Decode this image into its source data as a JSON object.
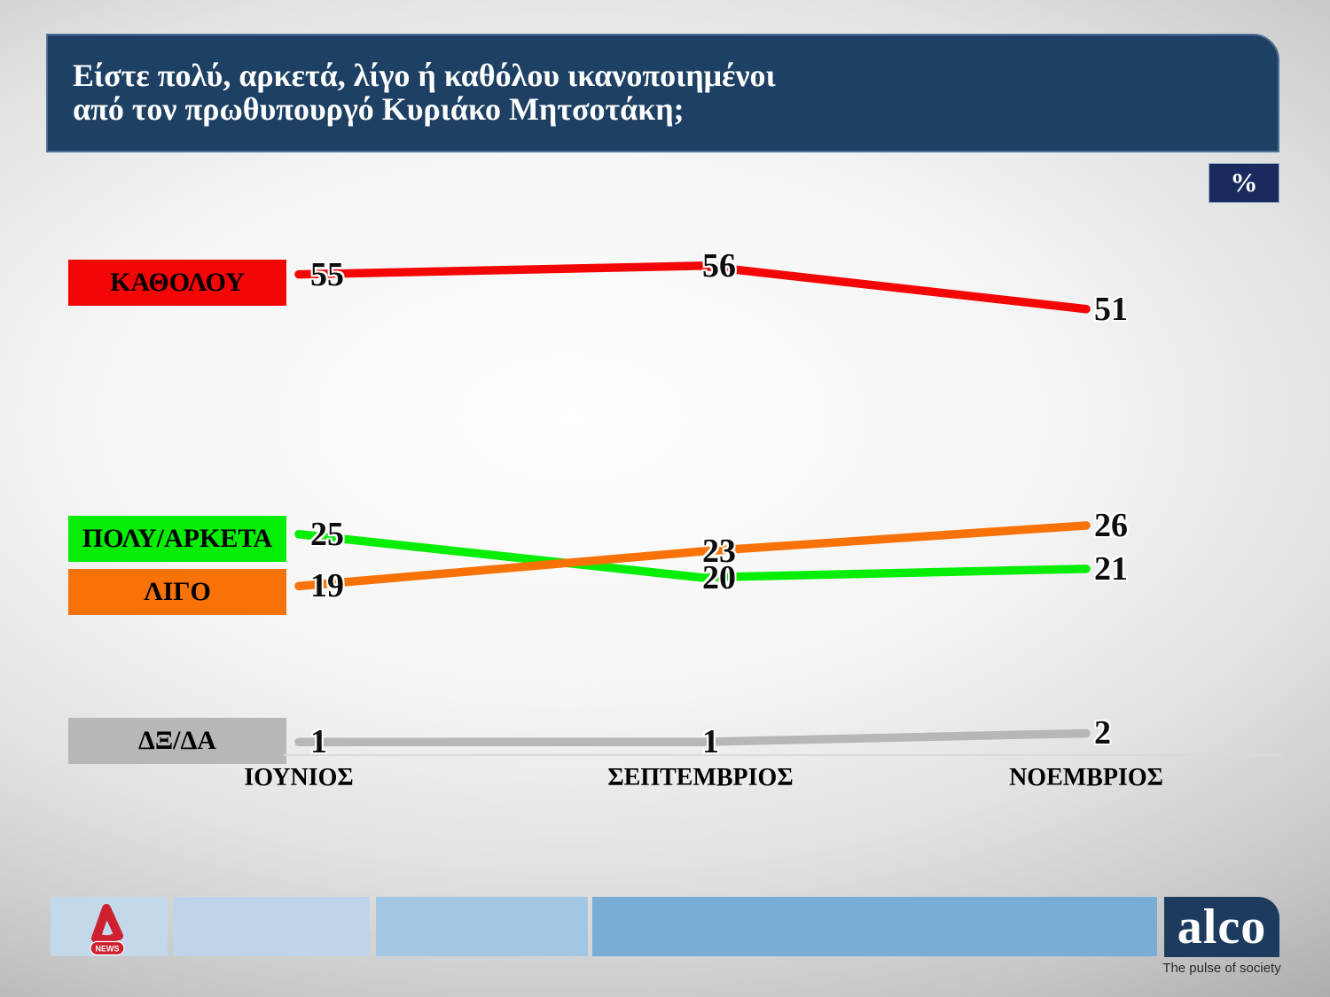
{
  "title": {
    "line1": "Είστε πολύ, αρκετά, λίγο ή καθόλου ικανοποιημένοι",
    "line2": "από τον πρωθυπουργό Κυριάκο Μητσοτάκη;"
  },
  "unit_badge": "%",
  "chart_data": {
    "type": "line",
    "categories": [
      "ΙΟΥΝΙΟΣ",
      "ΣΕΠΤΕΜΒΡΙΟΣ",
      "ΝΟΕΜΒΡΙΟΣ"
    ],
    "series": [
      {
        "name": "ΚΑΘΟΛΟΥ",
        "color": "#f40606",
        "values": [
          55,
          56,
          51
        ]
      },
      {
        "name": "ΠΟΛΥ/ΑΡΚΕΤΑ",
        "color": "#06ee06",
        "values": [
          25,
          20,
          21
        ]
      },
      {
        "name": "ΛΙΓΟ",
        "color": "#f87207",
        "values": [
          19,
          23,
          26
        ]
      },
      {
        "name": "ΔΞ/ΔΑ",
        "color": "#b7b7b7",
        "values": [
          1,
          1,
          2
        ]
      }
    ],
    "unit": "%",
    "ylim": [
      0,
      82
    ],
    "legend_position": "left",
    "grid": false
  },
  "footer": {
    "alpha_news_label": "NEWS",
    "alco_name": "alco",
    "alco_tagline": "The pulse of society"
  }
}
